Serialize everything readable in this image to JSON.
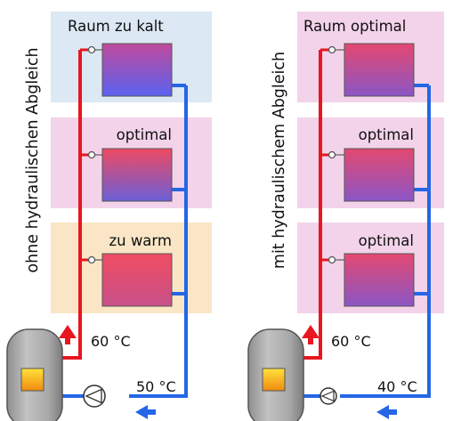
{
  "colors": {
    "supply": "#e8161f",
    "return": "#2466e6",
    "room_cold": "#dce8f4",
    "room_optimal": "#f3d3ea",
    "room_warm": "#fae6c6"
  },
  "left": {
    "side_label": "ohne hydraulischen Abgleich",
    "rooms": [
      "Raum zu kalt",
      "optimal",
      "zu warm"
    ],
    "supply_temp": "60 °C",
    "return_temp": "50 °C"
  },
  "right": {
    "side_label": "mit hydraulischem Abgleich",
    "rooms": [
      "Raum optimal",
      "optimal",
      "optimal"
    ],
    "supply_temp": "60 °C",
    "return_temp": "40 °C"
  }
}
